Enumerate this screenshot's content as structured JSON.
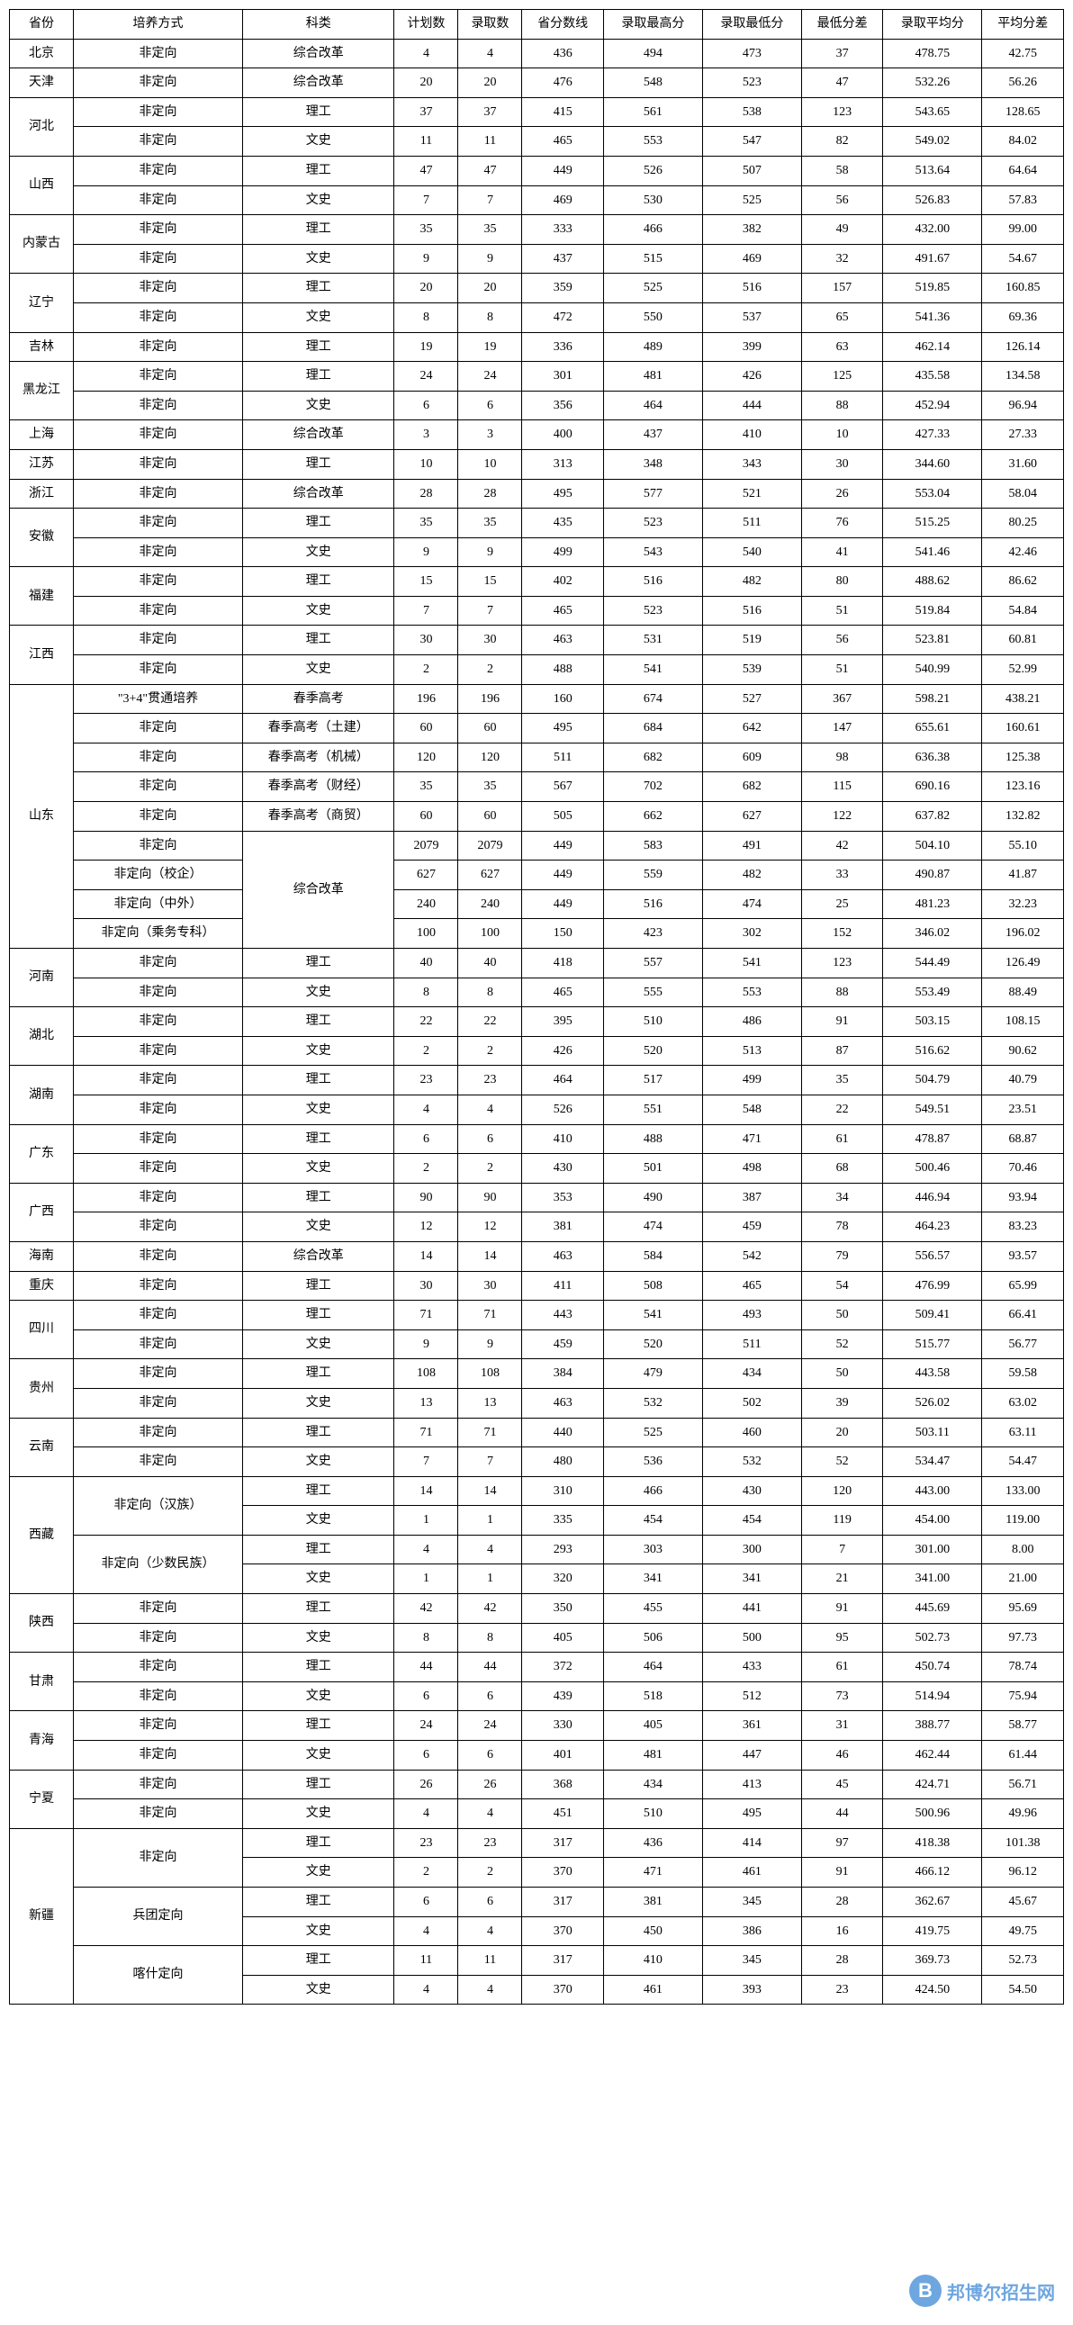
{
  "headers": [
    "省份",
    "培养方式",
    "科类",
    "计划数",
    "录取数",
    "省分数线",
    "录取最高分",
    "录取最低分",
    "最低分差",
    "录取平均分",
    "平均分差"
  ],
  "watermark": {
    "letter": "B",
    "text": "邦博尔招生网"
  },
  "rows": [
    {
      "province": "北京",
      "items": [
        {
          "mode": "非定向",
          "cat": "综合改革",
          "v": [
            "4",
            "4",
            "436",
            "494",
            "473",
            "37",
            "478.75",
            "42.75"
          ]
        }
      ]
    },
    {
      "province": "天津",
      "items": [
        {
          "mode": "非定向",
          "cat": "综合改革",
          "v": [
            "20",
            "20",
            "476",
            "548",
            "523",
            "47",
            "532.26",
            "56.26"
          ]
        }
      ]
    },
    {
      "province": "河北",
      "items": [
        {
          "mode": "非定向",
          "cat": "理工",
          "v": [
            "37",
            "37",
            "415",
            "561",
            "538",
            "123",
            "543.65",
            "128.65"
          ]
        },
        {
          "mode": "非定向",
          "cat": "文史",
          "v": [
            "11",
            "11",
            "465",
            "553",
            "547",
            "82",
            "549.02",
            "84.02"
          ]
        }
      ]
    },
    {
      "province": "山西",
      "items": [
        {
          "mode": "非定向",
          "cat": "理工",
          "v": [
            "47",
            "47",
            "449",
            "526",
            "507",
            "58",
            "513.64",
            "64.64"
          ]
        },
        {
          "mode": "非定向",
          "cat": "文史",
          "v": [
            "7",
            "7",
            "469",
            "530",
            "525",
            "56",
            "526.83",
            "57.83"
          ]
        }
      ]
    },
    {
      "province": "内蒙古",
      "items": [
        {
          "mode": "非定向",
          "cat": "理工",
          "v": [
            "35",
            "35",
            "333",
            "466",
            "382",
            "49",
            "432.00",
            "99.00"
          ]
        },
        {
          "mode": "非定向",
          "cat": "文史",
          "v": [
            "9",
            "9",
            "437",
            "515",
            "469",
            "32",
            "491.67",
            "54.67"
          ]
        }
      ]
    },
    {
      "province": "辽宁",
      "items": [
        {
          "mode": "非定向",
          "cat": "理工",
          "v": [
            "20",
            "20",
            "359",
            "525",
            "516",
            "157",
            "519.85",
            "160.85"
          ]
        },
        {
          "mode": "非定向",
          "cat": "文史",
          "v": [
            "8",
            "8",
            "472",
            "550",
            "537",
            "65",
            "541.36",
            "69.36"
          ]
        }
      ]
    },
    {
      "province": "吉林",
      "items": [
        {
          "mode": "非定向",
          "cat": "理工",
          "v": [
            "19",
            "19",
            "336",
            "489",
            "399",
            "63",
            "462.14",
            "126.14"
          ]
        }
      ]
    },
    {
      "province": "黑龙江",
      "items": [
        {
          "mode": "非定向",
          "cat": "理工",
          "v": [
            "24",
            "24",
            "301",
            "481",
            "426",
            "125",
            "435.58",
            "134.58"
          ]
        },
        {
          "mode": "非定向",
          "cat": "文史",
          "v": [
            "6",
            "6",
            "356",
            "464",
            "444",
            "88",
            "452.94",
            "96.94"
          ]
        }
      ]
    },
    {
      "province": "上海",
      "items": [
        {
          "mode": "非定向",
          "cat": "综合改革",
          "v": [
            "3",
            "3",
            "400",
            "437",
            "410",
            "10",
            "427.33",
            "27.33"
          ]
        }
      ]
    },
    {
      "province": "江苏",
      "items": [
        {
          "mode": "非定向",
          "cat": "理工",
          "v": [
            "10",
            "10",
            "313",
            "348",
            "343",
            "30",
            "344.60",
            "31.60"
          ]
        }
      ]
    },
    {
      "province": "浙江",
      "items": [
        {
          "mode": "非定向",
          "cat": "综合改革",
          "v": [
            "28",
            "28",
            "495",
            "577",
            "521",
            "26",
            "553.04",
            "58.04"
          ]
        }
      ]
    },
    {
      "province": "安徽",
      "items": [
        {
          "mode": "非定向",
          "cat": "理工",
          "v": [
            "35",
            "35",
            "435",
            "523",
            "511",
            "76",
            "515.25",
            "80.25"
          ]
        },
        {
          "mode": "非定向",
          "cat": "文史",
          "v": [
            "9",
            "9",
            "499",
            "543",
            "540",
            "41",
            "541.46",
            "42.46"
          ]
        }
      ]
    },
    {
      "province": "福建",
      "items": [
        {
          "mode": "非定向",
          "cat": "理工",
          "v": [
            "15",
            "15",
            "402",
            "516",
            "482",
            "80",
            "488.62",
            "86.62"
          ]
        },
        {
          "mode": "非定向",
          "cat": "文史",
          "v": [
            "7",
            "7",
            "465",
            "523",
            "516",
            "51",
            "519.84",
            "54.84"
          ]
        }
      ]
    },
    {
      "province": "江西",
      "items": [
        {
          "mode": "非定向",
          "cat": "理工",
          "v": [
            "30",
            "30",
            "463",
            "531",
            "519",
            "56",
            "523.81",
            "60.81"
          ]
        },
        {
          "mode": "非定向",
          "cat": "文史",
          "v": [
            "2",
            "2",
            "488",
            "541",
            "539",
            "51",
            "540.99",
            "52.99"
          ]
        }
      ]
    },
    {
      "province": "山东",
      "special": true
    },
    {
      "province": "河南",
      "items": [
        {
          "mode": "非定向",
          "cat": "理工",
          "v": [
            "40",
            "40",
            "418",
            "557",
            "541",
            "123",
            "544.49",
            "126.49"
          ]
        },
        {
          "mode": "非定向",
          "cat": "文史",
          "v": [
            "8",
            "8",
            "465",
            "555",
            "553",
            "88",
            "553.49",
            "88.49"
          ]
        }
      ]
    },
    {
      "province": "湖北",
      "items": [
        {
          "mode": "非定向",
          "cat": "理工",
          "v": [
            "22",
            "22",
            "395",
            "510",
            "486",
            "91",
            "503.15",
            "108.15"
          ]
        },
        {
          "mode": "非定向",
          "cat": "文史",
          "v": [
            "2",
            "2",
            "426",
            "520",
            "513",
            "87",
            "516.62",
            "90.62"
          ]
        }
      ]
    },
    {
      "province": "湖南",
      "items": [
        {
          "mode": "非定向",
          "cat": "理工",
          "v": [
            "23",
            "23",
            "464",
            "517",
            "499",
            "35",
            "504.79",
            "40.79"
          ]
        },
        {
          "mode": "非定向",
          "cat": "文史",
          "v": [
            "4",
            "4",
            "526",
            "551",
            "548",
            "22",
            "549.51",
            "23.51"
          ]
        }
      ]
    },
    {
      "province": "广东",
      "items": [
        {
          "mode": "非定向",
          "cat": "理工",
          "v": [
            "6",
            "6",
            "410",
            "488",
            "471",
            "61",
            "478.87",
            "68.87"
          ]
        },
        {
          "mode": "非定向",
          "cat": "文史",
          "v": [
            "2",
            "2",
            "430",
            "501",
            "498",
            "68",
            "500.46",
            "70.46"
          ]
        }
      ]
    },
    {
      "province": "广西",
      "items": [
        {
          "mode": "非定向",
          "cat": "理工",
          "v": [
            "90",
            "90",
            "353",
            "490",
            "387",
            "34",
            "446.94",
            "93.94"
          ]
        },
        {
          "mode": "非定向",
          "cat": "文史",
          "v": [
            "12",
            "12",
            "381",
            "474",
            "459",
            "78",
            "464.23",
            "83.23"
          ]
        }
      ]
    },
    {
      "province": "海南",
      "items": [
        {
          "mode": "非定向",
          "cat": "综合改革",
          "v": [
            "14",
            "14",
            "463",
            "584",
            "542",
            "79",
            "556.57",
            "93.57"
          ]
        }
      ]
    },
    {
      "province": "重庆",
      "items": [
        {
          "mode": "非定向",
          "cat": "理工",
          "v": [
            "30",
            "30",
            "411",
            "508",
            "465",
            "54",
            "476.99",
            "65.99"
          ]
        }
      ]
    },
    {
      "province": "四川",
      "items": [
        {
          "mode": "非定向",
          "cat": "理工",
          "v": [
            "71",
            "71",
            "443",
            "541",
            "493",
            "50",
            "509.41",
            "66.41"
          ]
        },
        {
          "mode": "非定向",
          "cat": "文史",
          "v": [
            "9",
            "9",
            "459",
            "520",
            "511",
            "52",
            "515.77",
            "56.77"
          ]
        }
      ]
    },
    {
      "province": "贵州",
      "items": [
        {
          "mode": "非定向",
          "cat": "理工",
          "v": [
            "108",
            "108",
            "384",
            "479",
            "434",
            "50",
            "443.58",
            "59.58"
          ]
        },
        {
          "mode": "非定向",
          "cat": "文史",
          "v": [
            "13",
            "13",
            "463",
            "532",
            "502",
            "39",
            "526.02",
            "63.02"
          ]
        }
      ]
    },
    {
      "province": "云南",
      "items": [
        {
          "mode": "非定向",
          "cat": "理工",
          "v": [
            "71",
            "71",
            "440",
            "525",
            "460",
            "20",
            "503.11",
            "63.11"
          ]
        },
        {
          "mode": "非定向",
          "cat": "文史",
          "v": [
            "7",
            "7",
            "480",
            "536",
            "532",
            "52",
            "534.47",
            "54.47"
          ]
        }
      ]
    },
    {
      "province": "西藏",
      "special": true
    },
    {
      "province": "陕西",
      "items": [
        {
          "mode": "非定向",
          "cat": "理工",
          "v": [
            "42",
            "42",
            "350",
            "455",
            "441",
            "91",
            "445.69",
            "95.69"
          ]
        },
        {
          "mode": "非定向",
          "cat": "文史",
          "v": [
            "8",
            "8",
            "405",
            "506",
            "500",
            "95",
            "502.73",
            "97.73"
          ]
        }
      ]
    },
    {
      "province": "甘肃",
      "items": [
        {
          "mode": "非定向",
          "cat": "理工",
          "v": [
            "44",
            "44",
            "372",
            "464",
            "433",
            "61",
            "450.74",
            "78.74"
          ]
        },
        {
          "mode": "非定向",
          "cat": "文史",
          "v": [
            "6",
            "6",
            "439",
            "518",
            "512",
            "73",
            "514.94",
            "75.94"
          ]
        }
      ]
    },
    {
      "province": "青海",
      "items": [
        {
          "mode": "非定向",
          "cat": "理工",
          "v": [
            "24",
            "24",
            "330",
            "405",
            "361",
            "31",
            "388.77",
            "58.77"
          ]
        },
        {
          "mode": "非定向",
          "cat": "文史",
          "v": [
            "6",
            "6",
            "401",
            "481",
            "447",
            "46",
            "462.44",
            "61.44"
          ]
        }
      ]
    },
    {
      "province": "宁夏",
      "items": [
        {
          "mode": "非定向",
          "cat": "理工",
          "v": [
            "26",
            "26",
            "368",
            "434",
            "413",
            "45",
            "424.71",
            "56.71"
          ]
        },
        {
          "mode": "非定向",
          "cat": "文史",
          "v": [
            "4",
            "4",
            "451",
            "510",
            "495",
            "44",
            "500.96",
            "49.96"
          ]
        }
      ]
    },
    {
      "province": "新疆",
      "special": true
    }
  ],
  "shandong": [
    {
      "mode": "\"3+4\"贯通培养",
      "cat": "春季高考",
      "v": [
        "196",
        "196",
        "160",
        "674",
        "527",
        "367",
        "598.21",
        "438.21"
      ]
    },
    {
      "mode": "非定向",
      "cat": "春季高考（土建）",
      "v": [
        "60",
        "60",
        "495",
        "684",
        "642",
        "147",
        "655.61",
        "160.61"
      ]
    },
    {
      "mode": "非定向",
      "cat": "春季高考（机械）",
      "v": [
        "120",
        "120",
        "511",
        "682",
        "609",
        "98",
        "636.38",
        "125.38"
      ]
    },
    {
      "mode": "非定向",
      "cat": "春季高考（财经）",
      "v": [
        "35",
        "35",
        "567",
        "702",
        "682",
        "115",
        "690.16",
        "123.16"
      ]
    },
    {
      "mode": "非定向",
      "cat": "春季高考（商贸）",
      "v": [
        "60",
        "60",
        "505",
        "662",
        "627",
        "122",
        "637.82",
        "132.82"
      ]
    },
    {
      "mode": "非定向",
      "cat": "综合改革",
      "catRowspan": 4,
      "v": [
        "2079",
        "2079",
        "449",
        "583",
        "491",
        "42",
        "504.10",
        "55.10"
      ]
    },
    {
      "mode": "非定向（校企）",
      "v": [
        "627",
        "627",
        "449",
        "559",
        "482",
        "33",
        "490.87",
        "41.87"
      ]
    },
    {
      "mode": "非定向（中外）",
      "v": [
        "240",
        "240",
        "449",
        "516",
        "474",
        "25",
        "481.23",
        "32.23"
      ]
    },
    {
      "mode": "非定向（乘务专科）",
      "v": [
        "100",
        "100",
        "150",
        "423",
        "302",
        "152",
        "346.02",
        "196.02"
      ]
    }
  ],
  "xizang": [
    {
      "mode": "非定向（汉族）",
      "modeRowspan": 2,
      "cat": "理工",
      "v": [
        "14",
        "14",
        "310",
        "466",
        "430",
        "120",
        "443.00",
        "133.00"
      ]
    },
    {
      "cat": "文史",
      "v": [
        "1",
        "1",
        "335",
        "454",
        "454",
        "119",
        "454.00",
        "119.00"
      ]
    },
    {
      "mode": "非定向（少数民族）",
      "modeRowspan": 2,
      "cat": "理工",
      "v": [
        "4",
        "4",
        "293",
        "303",
        "300",
        "7",
        "301.00",
        "8.00"
      ]
    },
    {
      "cat": "文史",
      "v": [
        "1",
        "1",
        "320",
        "341",
        "341",
        "21",
        "341.00",
        "21.00"
      ]
    }
  ],
  "xinjiang": [
    {
      "mode": "非定向",
      "modeRowspan": 2,
      "cat": "理工",
      "v": [
        "23",
        "23",
        "317",
        "436",
        "414",
        "97",
        "418.38",
        "101.38"
      ]
    },
    {
      "cat": "文史",
      "v": [
        "2",
        "2",
        "370",
        "471",
        "461",
        "91",
        "466.12",
        "96.12"
      ]
    },
    {
      "mode": "兵团定向",
      "modeRowspan": 2,
      "cat": "理工",
      "v": [
        "6",
        "6",
        "317",
        "381",
        "345",
        "28",
        "362.67",
        "45.67"
      ]
    },
    {
      "cat": "文史",
      "v": [
        "4",
        "4",
        "370",
        "450",
        "386",
        "16",
        "419.75",
        "49.75"
      ]
    },
    {
      "mode": "喀什定向",
      "modeRowspan": 2,
      "cat": "理工",
      "v": [
        "11",
        "11",
        "317",
        "410",
        "345",
        "28",
        "369.73",
        "52.73"
      ]
    },
    {
      "cat": "文史",
      "v": [
        "4",
        "4",
        "370",
        "461",
        "393",
        "23",
        "424.50",
        "54.50"
      ]
    }
  ]
}
